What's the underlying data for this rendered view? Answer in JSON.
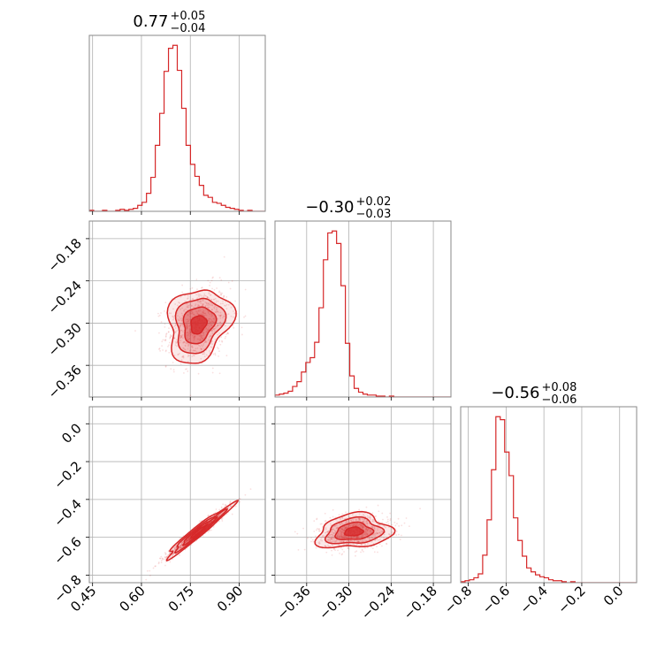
{
  "chart_data": {
    "type": "corner",
    "color": "#d62728",
    "grid": true,
    "parameters": [
      {
        "title": {
          "median": "0.77",
          "plus": "+0.05",
          "minus": "−0.04"
        },
        "range": [
          0.44,
          0.98
        ],
        "ticks": [
          0.45,
          0.6,
          0.75,
          0.9
        ],
        "tick_labels": [
          "0.45",
          "0.60",
          "0.75",
          "0.90"
        ],
        "histogram": {
          "bin_start": 0.44,
          "bin_width": 0.0135,
          "counts": [
            1,
            0,
            0,
            1,
            0,
            0,
            1,
            2,
            1,
            2,
            3,
            6,
            9,
            18,
            34,
            66,
            98,
            140,
            163,
            166,
            141,
            103,
            66,
            47,
            35,
            26,
            16,
            14,
            9,
            8,
            6,
            4,
            3,
            2,
            1,
            0,
            1,
            0,
            0,
            0
          ]
        }
      },
      {
        "title": {
          "median": "−0.30",
          "plus": "+0.02",
          "minus": "−0.03"
        },
        "range": [
          -0.405,
          -0.155
        ],
        "ticks": [
          -0.36,
          -0.3,
          -0.24,
          -0.18
        ],
        "tick_labels": [
          "−0.36",
          "−0.30",
          "−0.24",
          "−0.18"
        ],
        "histogram": {
          "bin_start": -0.405,
          "bin_width": 0.00625,
          "counts": [
            2,
            3,
            4,
            6,
            11,
            16,
            26,
            36,
            41,
            57,
            93,
            143,
            171,
            173,
            160,
            116,
            56,
            22,
            9,
            5,
            3,
            2,
            2,
            1,
            1,
            0,
            1,
            0,
            0,
            0,
            0,
            0,
            0,
            0,
            0,
            0,
            0,
            0,
            0,
            0
          ]
        }
      },
      {
        "title": {
          "median": "−0.56",
          "plus": "+0.08",
          "minus": "−0.06"
        },
        "range": [
          -0.84,
          0.09
        ],
        "ticks": [
          -0.8,
          -0.6,
          -0.4,
          -0.2,
          0.0
        ],
        "tick_labels": [
          "−0.8",
          "−0.6",
          "−0.4",
          "−0.2",
          "0.0"
        ],
        "histogram": {
          "bin_start": -0.84,
          "bin_width": 0.02325,
          "counts": [
            1,
            2,
            3,
            5,
            9,
            28,
            64,
            115,
            169,
            166,
            133,
            109,
            66,
            43,
            27,
            15,
            11,
            8,
            6,
            5,
            3,
            2,
            2,
            1,
            0,
            1,
            0,
            0,
            0,
            0,
            0,
            0,
            0,
            0,
            0,
            0,
            0,
            0,
            0,
            0
          ]
        }
      }
    ],
    "joint": [
      {
        "x": 0,
        "y": 1,
        "center": [
          0.775,
          -0.302
        ],
        "sd": [
          0.048,
          0.026
        ],
        "corr": 0.2
      },
      {
        "x": 0,
        "y": 2,
        "center": [
          0.775,
          -0.57
        ],
        "sd": [
          0.05,
          0.07
        ],
        "corr": 0.97
      },
      {
        "x": 1,
        "y": 2,
        "center": [
          -0.293,
          -0.57
        ],
        "sd": [
          0.026,
          0.045
        ],
        "corr": 0.15
      }
    ]
  }
}
